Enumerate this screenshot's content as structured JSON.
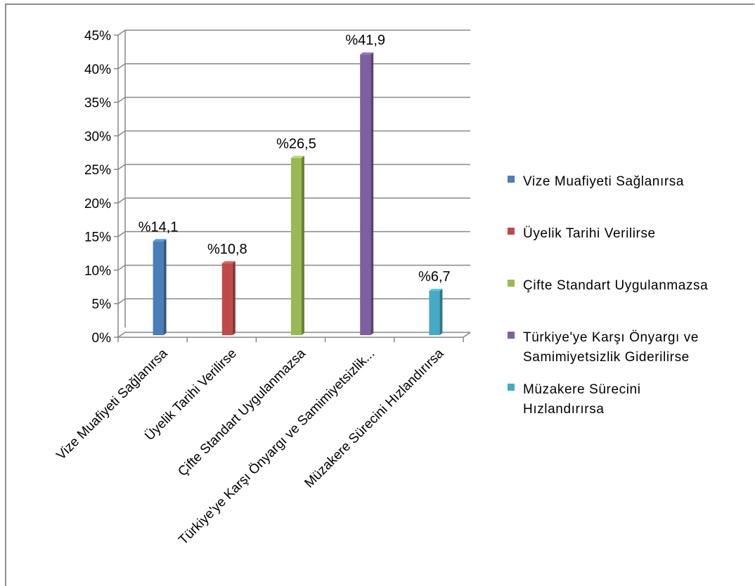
{
  "chart_data": {
    "type": "bar",
    "title": "",
    "xlabel": "",
    "ylabel": "",
    "ylim": [
      0,
      45
    ],
    "yticks": [
      "0%",
      "5%",
      "10%",
      "15%",
      "20%",
      "25%",
      "30%",
      "35%",
      "40%",
      "45%"
    ],
    "grid": true,
    "legend_position": "right",
    "categories": [
      "Vize Muafiyeti Sağlanırsa",
      "Üyelik Tarihi Verilirse",
      "Çifte Standart Uygulanmazsa",
      "Türkiye'ye Karşı Önyargı ve Samimiyetsizlik...",
      "Müzakere Sürecini Hızlandırırsa"
    ],
    "values": [
      14.1,
      10.8,
      26.5,
      41.9,
      6.7
    ],
    "data_labels": [
      "%14,1",
      "%10,8",
      "%26,5",
      "%41,9",
      "%6,7"
    ],
    "colors": [
      "#4a7ebb",
      "#be4b48",
      "#98b954",
      "#7d60a0",
      "#46aac5"
    ],
    "legend": [
      [
        "Vize Muafiyeti Sağlanırsa"
      ],
      [
        "Üyelik Tarihi Verilirse"
      ],
      [
        "Çifte Standart Uygulanmazsa"
      ],
      [
        "Türkiye'ye Karşı Önyargı ve",
        "Samimiyetsizlik Giderilirse"
      ],
      [
        "Müzakere Sürecini",
        "Hızlandırırsa"
      ]
    ]
  }
}
